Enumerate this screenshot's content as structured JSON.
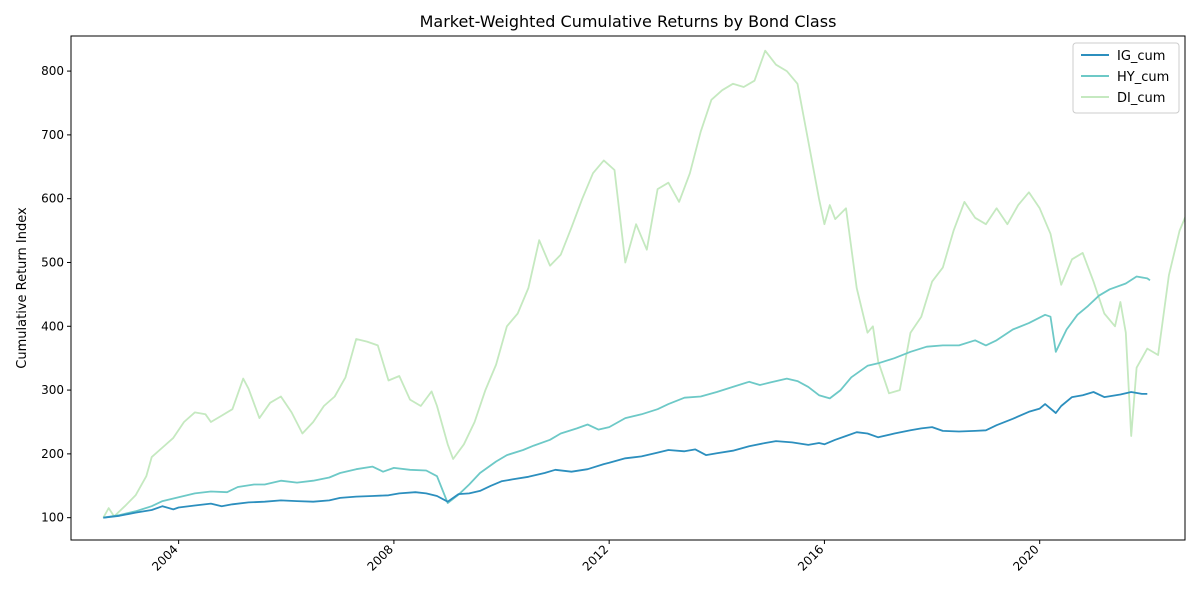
{
  "chart_data": {
    "type": "line",
    "title": "Market-Weighted Cumulative Returns by Bond Class",
    "xlabel": "",
    "ylabel": "Cumulative Return Index",
    "xlim": [
      2002.0,
      2022.7
    ],
    "ylim": [
      65,
      855
    ],
    "x_ticks": [
      2004,
      2008,
      2012,
      2016,
      2020
    ],
    "y_ticks": [
      100,
      200,
      300,
      400,
      500,
      600,
      700,
      800
    ],
    "legend_position": "top-right",
    "grid": false,
    "series": [
      {
        "name": "IG_cum",
        "color": "#2c8fbe",
        "points": [
          [
            2002.6,
            100
          ],
          [
            2002.9,
            103
          ],
          [
            2003.2,
            108
          ],
          [
            2003.5,
            112
          ],
          [
            2003.7,
            118
          ],
          [
            2003.9,
            113
          ],
          [
            2004.0,
            116
          ],
          [
            2004.3,
            119
          ],
          [
            2004.6,
            122
          ],
          [
            2004.8,
            118
          ],
          [
            2005.0,
            121
          ],
          [
            2005.3,
            124
          ],
          [
            2005.6,
            125
          ],
          [
            2005.9,
            127
          ],
          [
            2006.2,
            126
          ],
          [
            2006.5,
            125
          ],
          [
            2006.8,
            127
          ],
          [
            2007.0,
            131
          ],
          [
            2007.3,
            133
          ],
          [
            2007.6,
            134
          ],
          [
            2007.9,
            135
          ],
          [
            2008.1,
            138
          ],
          [
            2008.4,
            140
          ],
          [
            2008.6,
            138
          ],
          [
            2008.8,
            134
          ],
          [
            2009.0,
            125
          ],
          [
            2009.2,
            137
          ],
          [
            2009.4,
            138
          ],
          [
            2009.6,
            142
          ],
          [
            2009.8,
            150
          ],
          [
            2010.0,
            157
          ],
          [
            2010.2,
            160
          ],
          [
            2010.5,
            164
          ],
          [
            2010.8,
            170
          ],
          [
            2011.0,
            175
          ],
          [
            2011.3,
            172
          ],
          [
            2011.6,
            176
          ],
          [
            2011.9,
            184
          ],
          [
            2012.0,
            186
          ],
          [
            2012.3,
            193
          ],
          [
            2012.6,
            196
          ],
          [
            2012.9,
            202
          ],
          [
            2013.1,
            206
          ],
          [
            2013.4,
            204
          ],
          [
            2013.6,
            207
          ],
          [
            2013.8,
            198
          ],
          [
            2014.0,
            201
          ],
          [
            2014.3,
            205
          ],
          [
            2014.6,
            212
          ],
          [
            2014.9,
            217
          ],
          [
            2015.1,
            220
          ],
          [
            2015.4,
            218
          ],
          [
            2015.7,
            214
          ],
          [
            2015.9,
            217
          ],
          [
            2016.0,
            215
          ],
          [
            2016.2,
            222
          ],
          [
            2016.4,
            228
          ],
          [
            2016.6,
            234
          ],
          [
            2016.8,
            232
          ],
          [
            2017.0,
            226
          ],
          [
            2017.3,
            232
          ],
          [
            2017.6,
            237
          ],
          [
            2017.8,
            240
          ],
          [
            2018.0,
            242
          ],
          [
            2018.2,
            236
          ],
          [
            2018.5,
            235
          ],
          [
            2018.8,
            236
          ],
          [
            2019.0,
            237
          ],
          [
            2019.2,
            245
          ],
          [
            2019.5,
            255
          ],
          [
            2019.8,
            266
          ],
          [
            2020.0,
            271
          ],
          [
            2020.1,
            278
          ],
          [
            2020.3,
            264
          ],
          [
            2020.4,
            275
          ],
          [
            2020.6,
            289
          ],
          [
            2020.8,
            292
          ],
          [
            2021.0,
            297
          ],
          [
            2021.2,
            289
          ],
          [
            2021.5,
            293
          ],
          [
            2021.7,
            297
          ],
          [
            2021.9,
            294
          ],
          [
            2022.0,
            294
          ]
        ]
      },
      {
        "name": "HY_cum",
        "color": "#6dc9c7",
        "points": [
          [
            2002.6,
            100
          ],
          [
            2002.9,
            104
          ],
          [
            2003.2,
            110
          ],
          [
            2003.5,
            118
          ],
          [
            2003.7,
            126
          ],
          [
            2004.0,
            132
          ],
          [
            2004.3,
            138
          ],
          [
            2004.6,
            141
          ],
          [
            2004.9,
            140
          ],
          [
            2005.1,
            148
          ],
          [
            2005.4,
            152
          ],
          [
            2005.6,
            152
          ],
          [
            2005.9,
            158
          ],
          [
            2006.2,
            155
          ],
          [
            2006.5,
            158
          ],
          [
            2006.8,
            163
          ],
          [
            2007.0,
            170
          ],
          [
            2007.3,
            176
          ],
          [
            2007.6,
            180
          ],
          [
            2007.8,
            172
          ],
          [
            2008.0,
            178
          ],
          [
            2008.3,
            175
          ],
          [
            2008.6,
            174
          ],
          [
            2008.8,
            165
          ],
          [
            2009.0,
            123
          ],
          [
            2009.2,
            136
          ],
          [
            2009.4,
            152
          ],
          [
            2009.6,
            170
          ],
          [
            2009.9,
            188
          ],
          [
            2010.1,
            198
          ],
          [
            2010.4,
            206
          ],
          [
            2010.6,
            213
          ],
          [
            2010.9,
            222
          ],
          [
            2011.1,
            232
          ],
          [
            2011.4,
            240
          ],
          [
            2011.6,
            246
          ],
          [
            2011.8,
            238
          ],
          [
            2012.0,
            242
          ],
          [
            2012.3,
            256
          ],
          [
            2012.6,
            262
          ],
          [
            2012.9,
            270
          ],
          [
            2013.1,
            278
          ],
          [
            2013.4,
            288
          ],
          [
            2013.7,
            290
          ],
          [
            2014.0,
            297
          ],
          [
            2014.3,
            305
          ],
          [
            2014.6,
            313
          ],
          [
            2014.8,
            308
          ],
          [
            2015.0,
            312
          ],
          [
            2015.3,
            318
          ],
          [
            2015.5,
            314
          ],
          [
            2015.7,
            305
          ],
          [
            2015.9,
            292
          ],
          [
            2016.1,
            287
          ],
          [
            2016.3,
            300
          ],
          [
            2016.5,
            320
          ],
          [
            2016.8,
            338
          ],
          [
            2017.0,
            342
          ],
          [
            2017.3,
            350
          ],
          [
            2017.6,
            360
          ],
          [
            2017.9,
            368
          ],
          [
            2018.2,
            370
          ],
          [
            2018.5,
            370
          ],
          [
            2018.8,
            378
          ],
          [
            2019.0,
            370
          ],
          [
            2019.2,
            378
          ],
          [
            2019.5,
            395
          ],
          [
            2019.8,
            405
          ],
          [
            2020.1,
            418
          ],
          [
            2020.2,
            415
          ],
          [
            2020.3,
            360
          ],
          [
            2020.5,
            395
          ],
          [
            2020.7,
            418
          ],
          [
            2020.9,
            432
          ],
          [
            2021.1,
            448
          ],
          [
            2021.3,
            458
          ],
          [
            2021.6,
            467
          ],
          [
            2021.8,
            478
          ],
          [
            2022.0,
            475
          ],
          [
            2022.05,
            472
          ]
        ]
      },
      {
        "name": "DI_cum",
        "color": "#c5e9c0",
        "points": [
          [
            2002.6,
            100
          ],
          [
            2002.7,
            115
          ],
          [
            2002.8,
            102
          ],
          [
            2003.0,
            118
          ],
          [
            2003.2,
            135
          ],
          [
            2003.4,
            165
          ],
          [
            2003.5,
            195
          ],
          [
            2003.7,
            210
          ],
          [
            2003.9,
            225
          ],
          [
            2004.1,
            250
          ],
          [
            2004.3,
            265
          ],
          [
            2004.5,
            262
          ],
          [
            2004.6,
            250
          ],
          [
            2004.8,
            260
          ],
          [
            2005.0,
            270
          ],
          [
            2005.2,
            318
          ],
          [
            2005.3,
            302
          ],
          [
            2005.5,
            256
          ],
          [
            2005.7,
            280
          ],
          [
            2005.9,
            290
          ],
          [
            2006.1,
            265
          ],
          [
            2006.3,
            232
          ],
          [
            2006.5,
            250
          ],
          [
            2006.7,
            275
          ],
          [
            2006.9,
            290
          ],
          [
            2007.1,
            320
          ],
          [
            2007.3,
            380
          ],
          [
            2007.5,
            376
          ],
          [
            2007.7,
            370
          ],
          [
            2007.9,
            315
          ],
          [
            2008.1,
            322
          ],
          [
            2008.3,
            285
          ],
          [
            2008.5,
            275
          ],
          [
            2008.7,
            298
          ],
          [
            2008.8,
            275
          ],
          [
            2009.0,
            215
          ],
          [
            2009.1,
            192
          ],
          [
            2009.3,
            215
          ],
          [
            2009.5,
            250
          ],
          [
            2009.7,
            300
          ],
          [
            2009.9,
            340
          ],
          [
            2010.1,
            400
          ],
          [
            2010.3,
            420
          ],
          [
            2010.5,
            460
          ],
          [
            2010.7,
            535
          ],
          [
            2010.9,
            495
          ],
          [
            2011.1,
            512
          ],
          [
            2011.3,
            555
          ],
          [
            2011.5,
            600
          ],
          [
            2011.7,
            640
          ],
          [
            2011.9,
            660
          ],
          [
            2012.1,
            645
          ],
          [
            2012.3,
            500
          ],
          [
            2012.5,
            560
          ],
          [
            2012.7,
            520
          ],
          [
            2012.9,
            615
          ],
          [
            2013.1,
            625
          ],
          [
            2013.3,
            595
          ],
          [
            2013.5,
            640
          ],
          [
            2013.7,
            705
          ],
          [
            2013.9,
            755
          ],
          [
            2014.1,
            770
          ],
          [
            2014.3,
            780
          ],
          [
            2014.5,
            775
          ],
          [
            2014.7,
            785
          ],
          [
            2014.9,
            832
          ],
          [
            2015.1,
            810
          ],
          [
            2015.3,
            800
          ],
          [
            2015.5,
            780
          ],
          [
            2015.7,
            690
          ],
          [
            2015.9,
            600
          ],
          [
            2016.0,
            560
          ],
          [
            2016.1,
            590
          ],
          [
            2016.2,
            568
          ],
          [
            2016.4,
            585
          ],
          [
            2016.6,
            460
          ],
          [
            2016.8,
            390
          ],
          [
            2016.9,
            400
          ],
          [
            2017.0,
            345
          ],
          [
            2017.2,
            295
          ],
          [
            2017.4,
            300
          ],
          [
            2017.6,
            390
          ],
          [
            2017.8,
            415
          ],
          [
            2018.0,
            470
          ],
          [
            2018.2,
            492
          ],
          [
            2018.4,
            550
          ],
          [
            2018.6,
            595
          ],
          [
            2018.8,
            570
          ],
          [
            2019.0,
            560
          ],
          [
            2019.2,
            585
          ],
          [
            2019.4,
            560
          ],
          [
            2019.6,
            590
          ],
          [
            2019.8,
            610
          ],
          [
            2020.0,
            585
          ],
          [
            2020.2,
            545
          ],
          [
            2020.4,
            465
          ],
          [
            2020.6,
            505
          ],
          [
            2020.8,
            515
          ],
          [
            2021.0,
            470
          ],
          [
            2021.2,
            420
          ],
          [
            2021.4,
            400
          ],
          [
            2021.5,
            438
          ],
          [
            2021.6,
            390
          ],
          [
            2021.7,
            228
          ],
          [
            2021.8,
            335
          ],
          [
            2022.0,
            365
          ],
          [
            2022.2,
            355
          ],
          [
            2022.4,
            480
          ],
          [
            2022.6,
            550
          ],
          [
            2022.8,
            590
          ]
        ]
      }
    ]
  }
}
